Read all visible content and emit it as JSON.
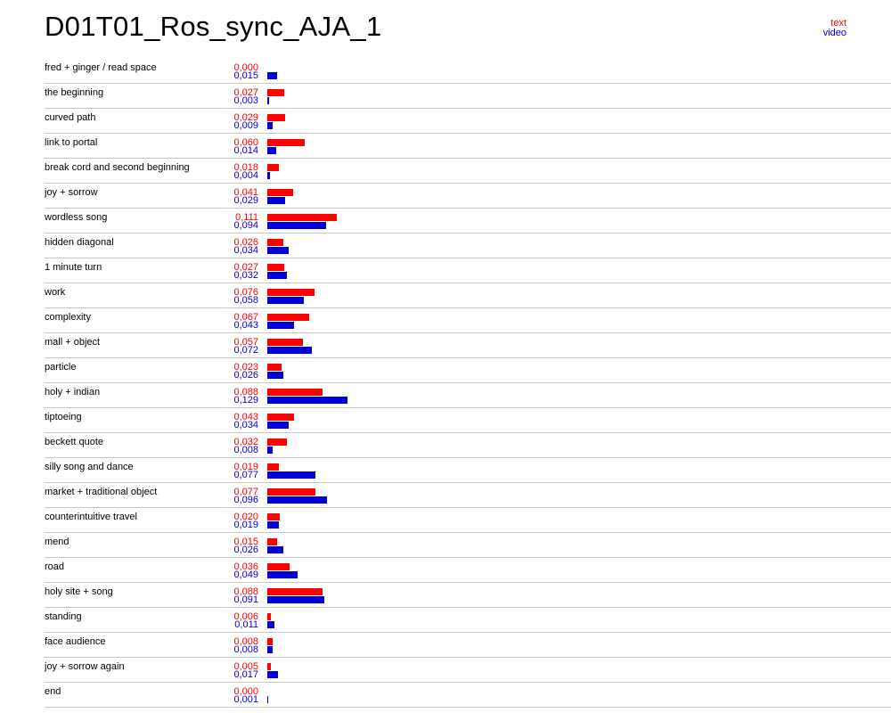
{
  "title": "D01T01_Ros_sync_AJA_1",
  "legend": {
    "text": "text",
    "video": "video"
  },
  "colors": {
    "text": "#ff0000",
    "video": "#0000dd",
    "divider": "#c8c8c8"
  },
  "chart_data": {
    "type": "bar",
    "orientation": "horizontal",
    "title": "D01T01_Ros_sync_AJA_1",
    "categories": [
      "fred + ginger / read space",
      "the beginning",
      "curved path",
      "link to portal",
      "break cord and second beginning",
      "joy + sorrow",
      "wordless song",
      "hidden diagonal",
      "1 minute turn",
      "work",
      "complexity",
      "mall + object",
      "particle",
      "holy + indian",
      "tiptoeing",
      "beckett quote",
      "silly song and dance",
      "market + traditional object",
      "counterintuitive travel",
      "mend",
      "road",
      "holy site + song",
      "standing",
      "face audience",
      "joy + sorrow again",
      "end"
    ],
    "series": [
      {
        "name": "text",
        "values": [
          0.0,
          0.027,
          0.029,
          0.06,
          0.018,
          0.041,
          0.111,
          0.026,
          0.027,
          0.076,
          0.067,
          0.057,
          0.023,
          0.088,
          0.043,
          0.032,
          0.019,
          0.077,
          0.02,
          0.015,
          0.036,
          0.088,
          0.006,
          0.008,
          0.005,
          0.0
        ],
        "labels": [
          "0,000",
          "0,027",
          "0,029",
          "0,060",
          "0,018",
          "0,041",
          "0,111",
          "0,026",
          "0,027",
          "0,076",
          "0,067",
          "0,057",
          "0,023",
          "0,088",
          "0,043",
          "0,032",
          "0,019",
          "0,077",
          "0,020",
          "0,015",
          "0,036",
          "0,088",
          "0,006",
          "0,008",
          "0,005",
          "0,000"
        ]
      },
      {
        "name": "video",
        "values": [
          0.015,
          0.003,
          0.009,
          0.014,
          0.004,
          0.029,
          0.094,
          0.034,
          0.032,
          0.058,
          0.043,
          0.072,
          0.026,
          0.129,
          0.034,
          0.008,
          0.077,
          0.096,
          0.019,
          0.026,
          0.049,
          0.091,
          0.011,
          0.008,
          0.017,
          0.001
        ],
        "labels": [
          "0,015",
          "0,003",
          "0,009",
          "0,014",
          "0,004",
          "0,029",
          "0,094",
          "0,034",
          "0,032",
          "0,058",
          "0,043",
          "0,072",
          "0,026",
          "0,129",
          "0,034",
          "0,008",
          "0,077",
          "0,096",
          "0,019",
          "0,026",
          "0,049",
          "0,091",
          "0,011",
          "0,008",
          "0,017",
          "0,001"
        ]
      }
    ],
    "legend": "top-right",
    "grid": false
  }
}
